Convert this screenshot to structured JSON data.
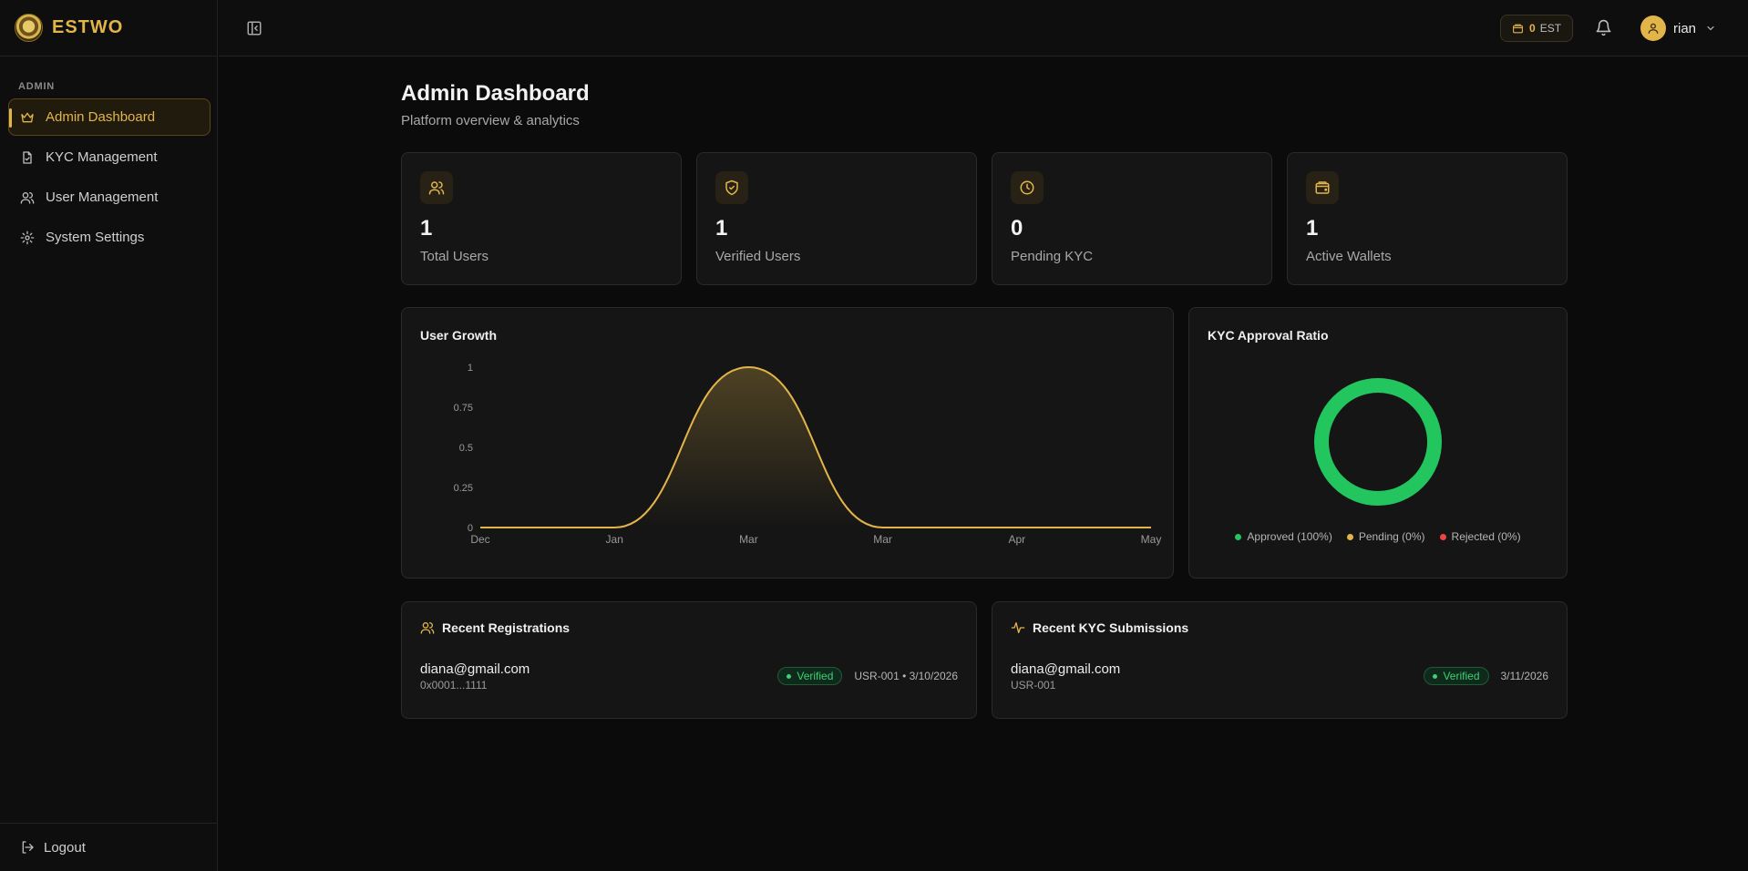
{
  "brand": {
    "name": "ESTWO"
  },
  "sidebar": {
    "section_label": "ADMIN",
    "items": [
      {
        "label": "Admin Dashboard",
        "icon": "crown-icon",
        "active": true
      },
      {
        "label": "KYC Management",
        "icon": "document-icon",
        "active": false
      },
      {
        "label": "User Management",
        "icon": "users-icon",
        "active": false
      },
      {
        "label": "System Settings",
        "icon": "gear-icon",
        "active": false
      }
    ],
    "logout_label": "Logout"
  },
  "header": {
    "balance_amount": "0",
    "balance_unit": "EST",
    "user_name": "rian"
  },
  "page": {
    "title": "Admin Dashboard",
    "subtitle": "Platform overview & analytics"
  },
  "stats": [
    {
      "value": "1",
      "label": "Total Users",
      "icon": "users-icon"
    },
    {
      "value": "1",
      "label": "Verified Users",
      "icon": "shield-check-icon"
    },
    {
      "value": "0",
      "label": "Pending KYC",
      "icon": "clock-icon"
    },
    {
      "value": "1",
      "label": "Active Wallets",
      "icon": "wallet-icon"
    }
  ],
  "user_growth": {
    "title": "User Growth",
    "chart_data": {
      "type": "area",
      "x": [
        "Dec",
        "Jan",
        "Mar",
        "Mar",
        "Apr",
        "May"
      ],
      "values": [
        0,
        0,
        1,
        0,
        0,
        0
      ],
      "yticks": [
        "0",
        "0.25",
        "0.5",
        "0.75",
        "1"
      ],
      "ylim": [
        0,
        1
      ],
      "color": "#e2b54a"
    }
  },
  "kyc_ratio": {
    "title": "KYC Approval Ratio",
    "chart_data": {
      "type": "pie",
      "slices": [
        {
          "label": "Approved (100%)",
          "value": 100,
          "color": "#22c55e"
        },
        {
          "label": "Pending (0%)",
          "value": 0,
          "color": "#e2b54a"
        },
        {
          "label": "Rejected (0%)",
          "value": 0,
          "color": "#ef4444"
        }
      ]
    }
  },
  "recent_registrations": {
    "title": "Recent Registrations",
    "rows": [
      {
        "email": "diana@gmail.com",
        "wallet": "0x0001...1111",
        "status": "Verified",
        "meta": "USR-001 • 3/10/2026"
      }
    ]
  },
  "recent_kyc": {
    "title": "Recent KYC Submissions",
    "rows": [
      {
        "email": "diana@gmail.com",
        "user_id": "USR-001",
        "status": "Verified",
        "date": "3/11/2026"
      }
    ]
  }
}
